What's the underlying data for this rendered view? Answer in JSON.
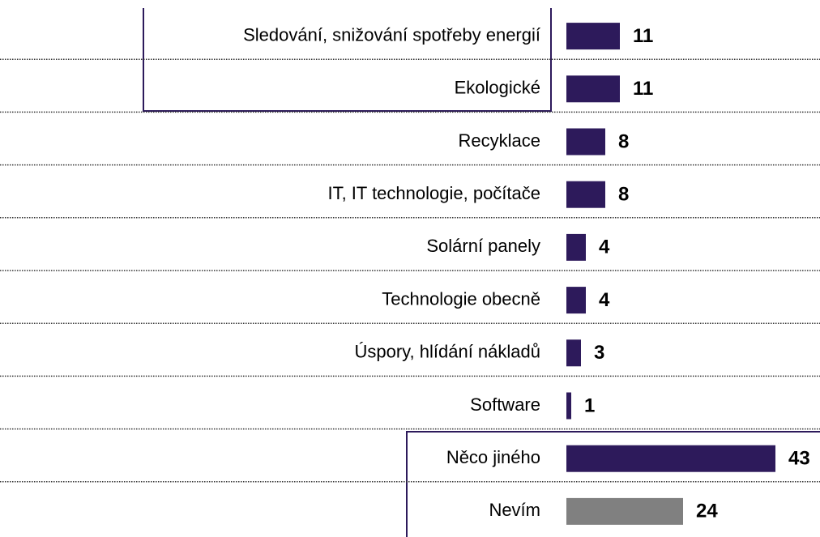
{
  "chart_data": {
    "type": "bar",
    "orientation": "horizontal",
    "categories": [
      "Sledování, snižování spotřeby energií",
      "Ekologické",
      "Recyklace",
      "IT, IT technologie, počítače",
      "Solární panely",
      "Technologie obecně",
      "Úspory, hlídání nákladů",
      "Software",
      "Něco jiného",
      "Nevím"
    ],
    "values": [
      11,
      11,
      8,
      8,
      4,
      4,
      3,
      1,
      43,
      24
    ],
    "colors": [
      "#2d1a5b",
      "#2d1a5b",
      "#2d1a5b",
      "#2d1a5b",
      "#2d1a5b",
      "#2d1a5b",
      "#2d1a5b",
      "#2d1a5b",
      "#2d1a5b",
      "#808080"
    ]
  }
}
